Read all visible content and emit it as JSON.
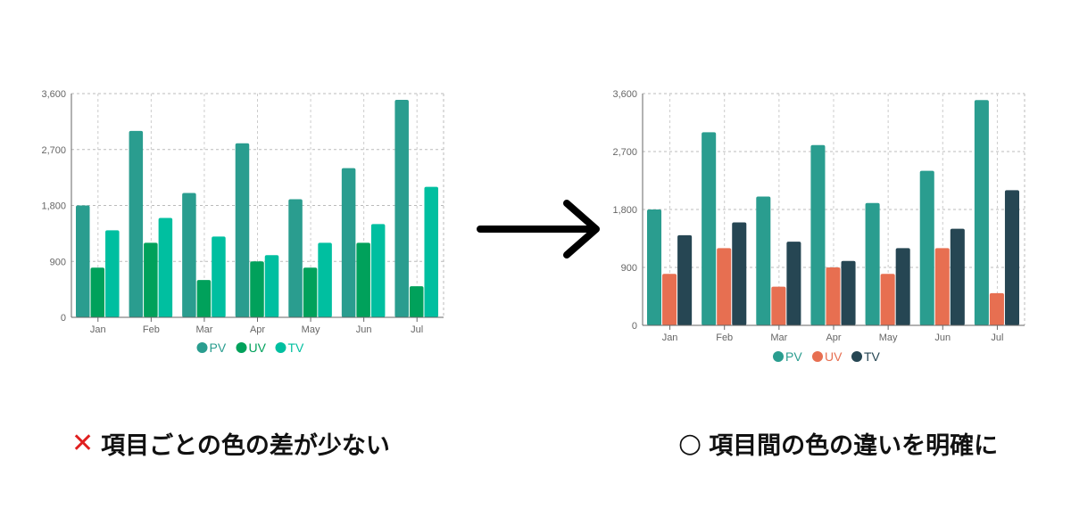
{
  "chart_data": [
    {
      "type": "bar",
      "categories": [
        "Jan",
        "Feb",
        "Mar",
        "Apr",
        "May",
        "Jun",
        "Jul"
      ],
      "series": [
        {
          "name": "PV",
          "values": [
            1800,
            3000,
            2000,
            2800,
            1900,
            2400,
            3500
          ],
          "color": "#2a9d8f"
        },
        {
          "name": "UV",
          "values": [
            800,
            1200,
            600,
            900,
            800,
            1200,
            500
          ],
          "color": "#00a15b"
        },
        {
          "name": "TV",
          "values": [
            1400,
            1600,
            1300,
            1000,
            1200,
            1500,
            2100
          ],
          "color": "#00bfa0"
        }
      ],
      "yticks": [
        "0",
        "900",
        "1,800",
        "2,700",
        "3,600"
      ],
      "ylim": [
        0,
        3600
      ],
      "grid": true,
      "legend": "bottom"
    },
    {
      "type": "bar",
      "categories": [
        "Jan",
        "Feb",
        "Mar",
        "Apr",
        "May",
        "Jun",
        "Jul"
      ],
      "series": [
        {
          "name": "PV",
          "values": [
            1800,
            3000,
            2000,
            2800,
            1900,
            2400,
            3500
          ],
          "color": "#2a9d8f"
        },
        {
          "name": "UV",
          "values": [
            800,
            1200,
            600,
            900,
            800,
            1200,
            500
          ],
          "color": "#e76f51"
        },
        {
          "name": "TV",
          "values": [
            1400,
            1600,
            1300,
            1000,
            1200,
            1500,
            2100
          ],
          "color": "#264653"
        }
      ],
      "yticks": [
        "0",
        "900",
        "1,800",
        "2,700",
        "3,600"
      ],
      "ylim": [
        0,
        3600
      ],
      "grid": true,
      "legend": "bottom"
    }
  ],
  "captions": {
    "bad_mark": "✕",
    "bad": "項目ごとの色の差が少ない",
    "good_mark": "○",
    "good": "項目間の色の違いを明確に"
  },
  "colors": {
    "bad_mark": "#e02020",
    "arrow": "#000000"
  }
}
